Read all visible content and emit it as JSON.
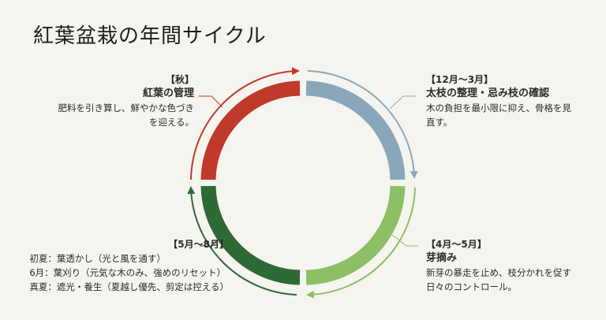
{
  "title": "紅葉盆栽の年間サイクル",
  "colors": {
    "autumn": "#c0392b",
    "winter": "#8aa6ba",
    "spring": "#8cbf66",
    "summer": "#2d6a36"
  },
  "segments": {
    "autumn": {
      "period": "【秋】",
      "heading": "紅葉の管理",
      "lines": [
        "肥料を引き算し、鮮やかな色づき",
        "を迎える。"
      ]
    },
    "winter": {
      "period": "【12月〜3月】",
      "heading": "太枝の整理・忌み枝の確認",
      "lines": [
        "木の負担を最小限に抑え、骨格を見",
        "直す。"
      ]
    },
    "spring": {
      "period": "【4月〜5月】",
      "heading": "芽摘み",
      "lines": [
        "新芽の暴走を止め、枝分かれを促す",
        "日々のコントロール。"
      ]
    },
    "summer": {
      "period": "【5月〜8月】",
      "lines": [
        "初夏：葉透かし（光と風を通す）",
        "6月：葉刈り（元気な木のみ、強めのリセット）",
        "真夏：遮光・養生（夏越し優先、剪定は控える）"
      ]
    }
  }
}
